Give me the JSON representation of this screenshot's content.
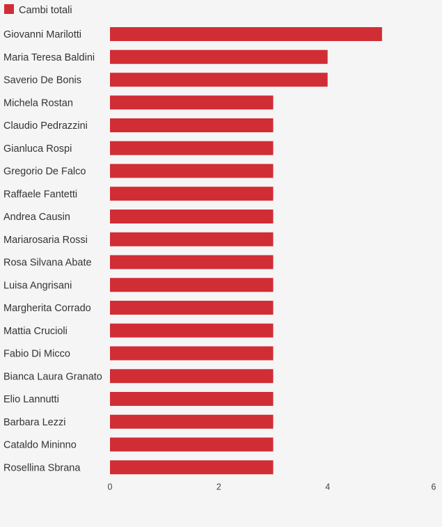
{
  "chart_data": {
    "type": "bar",
    "orientation": "horizontal",
    "title": "",
    "xlabel": "",
    "ylabel": "",
    "legend_position": "top-left",
    "grid": false,
    "xlim": [
      0,
      6
    ],
    "xticks": [
      0,
      2,
      4,
      6
    ],
    "categories": [
      "Giovanni Marilotti",
      "Maria Teresa Baldini",
      "Saverio De Bonis",
      "Michela Rostan",
      "Claudio Pedrazzini",
      "Gianluca Rospi",
      "Gregorio De Falco",
      "Raffaele Fantetti",
      "Andrea Causin",
      "Mariarosaria Rossi",
      "Rosa Silvana Abate",
      "Luisa Angrisani",
      "Margherita Corrado",
      "Mattia Crucioli",
      "Fabio Di Micco",
      "Bianca Laura Granato",
      "Elio Lannutti",
      "Barbara Lezzi",
      "Cataldo Mininno",
      "Rosellina Sbrana"
    ],
    "series": [
      {
        "name": "Cambi totali",
        "color": "#d12d35",
        "values": [
          5,
          4,
          4,
          3,
          3,
          3,
          3,
          3,
          3,
          3,
          3,
          3,
          3,
          3,
          3,
          3,
          3,
          3,
          3,
          3
        ]
      }
    ]
  }
}
